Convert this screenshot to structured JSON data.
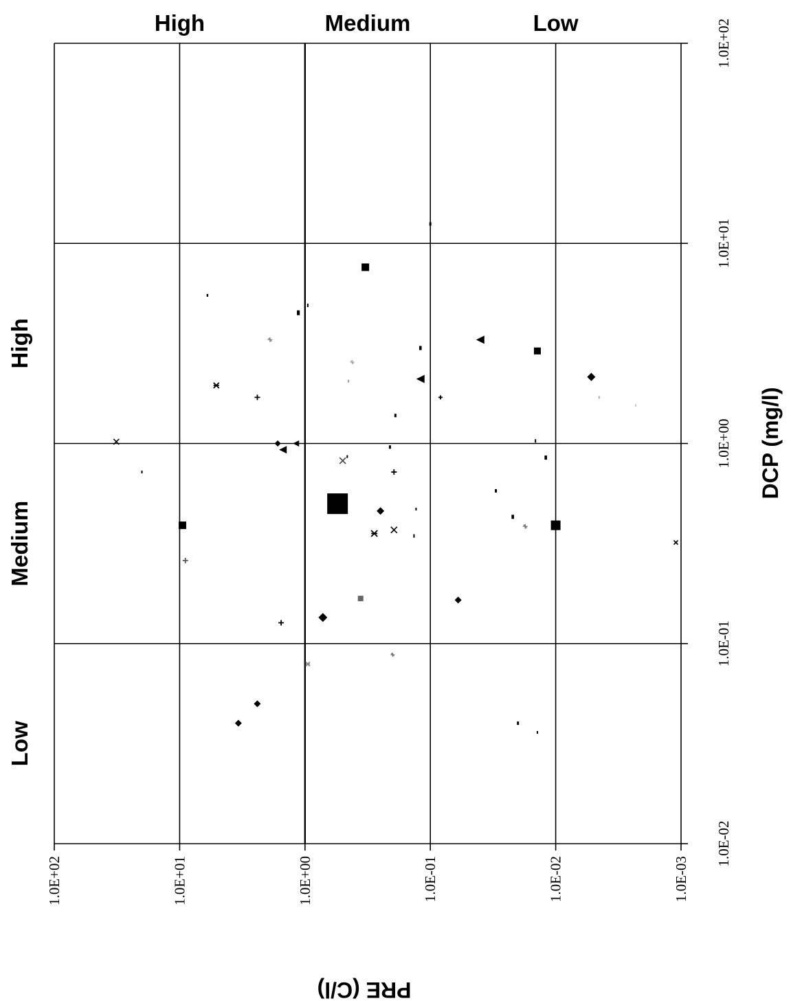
{
  "chart_data": {
    "type": "scatter",
    "orientation": "rotated-90",
    "x_axis": {
      "label": "PRE (C/l)",
      "scale": "log",
      "range": [
        0.001,
        100
      ],
      "ticks": [
        "1.0E+02",
        "1.0E+01",
        "1.0E+00",
        "1.0E-01",
        "1.0E-02",
        "1.0E-03"
      ]
    },
    "y_axis": {
      "label": "DCP (mg/l)",
      "scale": "log",
      "range": [
        0.01,
        100
      ],
      "ticks": [
        "1.0E-02",
        "1.0E-01",
        "1.0E+00",
        "1.0E+01",
        "1.0E+02"
      ]
    },
    "pre_zone_labels": [
      {
        "text": "High",
        "range": [
          1,
          100
        ]
      },
      {
        "text": "Medium",
        "range": [
          0.1,
          1
        ]
      },
      {
        "text": "Low",
        "range": [
          0.001,
          0.1
        ]
      }
    ],
    "dcp_zone_labels": [
      {
        "text": "Low",
        "range": [
          0.01,
          0.1
        ]
      },
      {
        "text": "Medium",
        "range": [
          0.1,
          1
        ]
      },
      {
        "text": "High",
        "range": [
          1,
          10
        ]
      }
    ],
    "grid": true,
    "points": [
      {
        "pre": 0.1,
        "dcp": 12.5,
        "marker": "bar",
        "size": 5
      },
      {
        "pre": 0.33,
        "dcp": 7.6,
        "marker": "square",
        "size": 11
      },
      {
        "pre": 6.0,
        "dcp": 5.5,
        "marker": "bar",
        "size": 4
      },
      {
        "pre": 0.95,
        "dcp": 4.9,
        "marker": "tick",
        "size": 5
      },
      {
        "pre": 1.13,
        "dcp": 4.5,
        "marker": "bar",
        "size": 7
      },
      {
        "pre": 0.04,
        "dcp": 3.3,
        "marker": "triangle",
        "size": 12
      },
      {
        "pre": 0.12,
        "dcp": 3.0,
        "marker": "bar",
        "size": 6
      },
      {
        "pre": 0.014,
        "dcp": 2.9,
        "marker": "square",
        "size": 10
      },
      {
        "pre": 1.9,
        "dcp": 3.3,
        "marker": "cross",
        "size": 7,
        "color": "#888888"
      },
      {
        "pre": 0.42,
        "dcp": 2.55,
        "marker": "cross",
        "size": 6,
        "color": "#aaaaaa"
      },
      {
        "pre": 0.45,
        "dcp": 2.05,
        "marker": "tick",
        "size": 4,
        "color": "#999999"
      },
      {
        "pre": 0.12,
        "dcp": 2.1,
        "marker": "triangle",
        "size": 12
      },
      {
        "pre": 0.0052,
        "dcp": 2.15,
        "marker": "diamond",
        "size": 12
      },
      {
        "pre": 5.1,
        "dcp": 1.95,
        "marker": "star",
        "size": 8
      },
      {
        "pre": 2.4,
        "dcp": 1.7,
        "marker": "plus",
        "size": 8
      },
      {
        "pre": 0.083,
        "dcp": 1.7,
        "marker": "plus",
        "size": 6
      },
      {
        "pre": 0.0045,
        "dcp": 1.7,
        "marker": "tick",
        "size": 4,
        "color": "#aaaaaa"
      },
      {
        "pre": 0.19,
        "dcp": 1.38,
        "marker": "bar",
        "size": 5
      },
      {
        "pre": 0.0023,
        "dcp": 1.55,
        "marker": "tick",
        "size": 4,
        "color": "#cccccc"
      },
      {
        "pre": 32,
        "dcp": 1.02,
        "marker": "x",
        "size": 8
      },
      {
        "pre": 1.65,
        "dcp": 1.0,
        "marker": "diamond",
        "size": 9
      },
      {
        "pre": 1.18,
        "dcp": 1.0,
        "marker": "triangle",
        "size": 9
      },
      {
        "pre": 0.0145,
        "dcp": 1.03,
        "marker": "tick",
        "size": 5
      },
      {
        "pre": 1.5,
        "dcp": 0.93,
        "marker": "triangle",
        "size": 11
      },
      {
        "pre": 0.21,
        "dcp": 0.96,
        "marker": "bar",
        "size": 5
      },
      {
        "pre": 0.46,
        "dcp": 0.86,
        "marker": "tick",
        "size": 4
      },
      {
        "pre": 0.5,
        "dcp": 0.82,
        "marker": "x",
        "size": 9,
        "color": "#444444"
      },
      {
        "pre": 20,
        "dcp": 0.72,
        "marker": "tick",
        "size": 4
      },
      {
        "pre": 0.195,
        "dcp": 0.72,
        "marker": "plus",
        "size": 8
      },
      {
        "pre": 0.012,
        "dcp": 0.85,
        "marker": "bar",
        "size": 6
      },
      {
        "pre": 0.03,
        "dcp": 0.58,
        "marker": "bar",
        "size": 5
      },
      {
        "pre": 0.55,
        "dcp": 0.5,
        "marker": "square",
        "size": 30
      },
      {
        "pre": 0.25,
        "dcp": 0.46,
        "marker": "diamond",
        "size": 11
      },
      {
        "pre": 0.13,
        "dcp": 0.47,
        "marker": "tick",
        "size": 4
      },
      {
        "pre": 0.022,
        "dcp": 0.43,
        "marker": "bar",
        "size": 6
      },
      {
        "pre": 9.5,
        "dcp": 0.39,
        "marker": "square",
        "size": 11
      },
      {
        "pre": 0.195,
        "dcp": 0.37,
        "marker": "x",
        "size": 9
      },
      {
        "pre": 0.28,
        "dcp": 0.355,
        "marker": "star",
        "size": 9
      },
      {
        "pre": 0.0175,
        "dcp": 0.385,
        "marker": "cross",
        "size": 7,
        "color": "#777777"
      },
      {
        "pre": 0.01,
        "dcp": 0.39,
        "marker": "square",
        "size": 14
      },
      {
        "pre": 0.135,
        "dcp": 0.345,
        "marker": "tick",
        "size": 5
      },
      {
        "pre": 0.0011,
        "dcp": 0.32,
        "marker": "x",
        "size": 6
      },
      {
        "pre": 9.0,
        "dcp": 0.26,
        "marker": "plus",
        "size": 8,
        "color": "#555555"
      },
      {
        "pre": 0.36,
        "dcp": 0.168,
        "marker": "square",
        "size": 8,
        "color": "#666666"
      },
      {
        "pre": 0.06,
        "dcp": 0.165,
        "marker": "diamond",
        "size": 10
      },
      {
        "pre": 0.72,
        "dcp": 0.135,
        "marker": "diamond",
        "size": 13
      },
      {
        "pre": 1.55,
        "dcp": 0.127,
        "marker": "plus",
        "size": 8
      },
      {
        "pre": 0.2,
        "dcp": 0.088,
        "marker": "cross",
        "size": 6,
        "color": "#777777"
      },
      {
        "pre": 0.95,
        "dcp": 0.079,
        "marker": "star",
        "size": 6,
        "color": "#888888"
      },
      {
        "pre": 2.4,
        "dcp": 0.05,
        "marker": "diamond",
        "size": 10
      },
      {
        "pre": 3.4,
        "dcp": 0.04,
        "marker": "diamond",
        "size": 10
      },
      {
        "pre": 0.02,
        "dcp": 0.04,
        "marker": "bar",
        "size": 5
      },
      {
        "pre": 0.014,
        "dcp": 0.036,
        "marker": "tick",
        "size": 4
      }
    ]
  }
}
